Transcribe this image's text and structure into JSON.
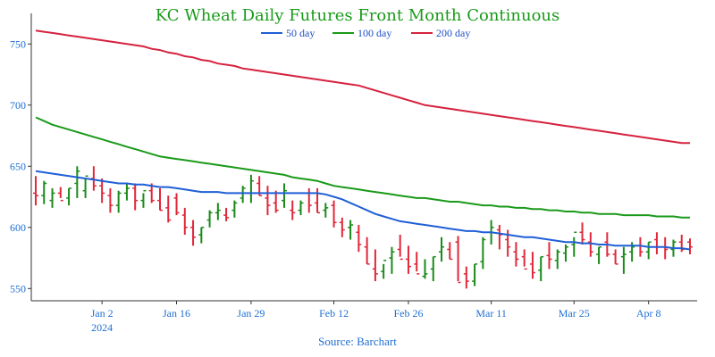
{
  "chart_data": {
    "type": "line",
    "title": "KC Wheat Daily Futures Front Month Continuous",
    "source": "Source: Barchart",
    "legend_position": "top",
    "grid": false,
    "ylim": [
      540,
      775
    ],
    "yticks": [
      550,
      600,
      650,
      700,
      750
    ],
    "x_dates": [
      "Dec 19",
      "Dec 20",
      "Dec 21",
      "Dec 22",
      "Dec 26",
      "Dec 27",
      "Dec 28",
      "Dec 29",
      "Jan 2",
      "Jan 3",
      "Jan 4",
      "Jan 5",
      "Jan 8",
      "Jan 9",
      "Jan 10",
      "Jan 11",
      "Jan 12",
      "Jan 16",
      "Jan 17",
      "Jan 18",
      "Jan 19",
      "Jan 22",
      "Jan 23",
      "Jan 24",
      "Jan 25",
      "Jan 26",
      "Jan 29",
      "Jan 30",
      "Jan 31",
      "Feb 1",
      "Feb 2",
      "Feb 5",
      "Feb 6",
      "Feb 7",
      "Feb 8",
      "Feb 9",
      "Feb 12",
      "Feb 13",
      "Feb 14",
      "Feb 15",
      "Feb 16",
      "Feb 20",
      "Feb 21",
      "Feb 22",
      "Feb 23",
      "Feb 26",
      "Feb 27",
      "Feb 28",
      "Feb 29",
      "Mar 1",
      "Mar 4",
      "Mar 5",
      "Mar 6",
      "Mar 7",
      "Mar 8",
      "Mar 11",
      "Mar 12",
      "Mar 13",
      "Mar 14",
      "Mar 15",
      "Mar 18",
      "Mar 19",
      "Mar 20",
      "Mar 21",
      "Mar 22",
      "Mar 25",
      "Mar 26",
      "Mar 27",
      "Mar 28",
      "Apr 1",
      "Apr 2",
      "Apr 3",
      "Apr 4",
      "Apr 5",
      "Apr 8",
      "Apr 9",
      "Apr 10",
      "Apr 11",
      "Apr 12",
      "Apr 15"
    ],
    "x_ticks": [
      {
        "label": "Jan 2",
        "sublabel": "2024",
        "date": "Jan 2"
      },
      {
        "label": "Jan 16",
        "date": "Jan 16"
      },
      {
        "label": "Jan 29",
        "date": "Jan 29"
      },
      {
        "label": "Feb 12",
        "date": "Feb 12"
      },
      {
        "label": "Feb 26",
        "date": "Feb 26"
      },
      {
        "label": "Mar 11",
        "date": "Mar 11"
      },
      {
        "label": "Mar 25",
        "date": "Mar 25"
      },
      {
        "label": "Apr 8",
        "date": "Apr 8"
      }
    ],
    "ohlc": {
      "name": "KC Wheat",
      "up_color": "#1a8a1a",
      "down_color": "#e0283a",
      "open": [
        628,
        626,
        622,
        628,
        624,
        636,
        630,
        640,
        634,
        626,
        618,
        628,
        632,
        622,
        630,
        622,
        616,
        624,
        610,
        600,
        594,
        606,
        612,
        610,
        614,
        624,
        628,
        636,
        624,
        620,
        622,
        614,
        614,
        628,
        620,
        614,
        618,
        604,
        600,
        596,
        584,
        566,
        564,
        575,
        582,
        574,
        570,
        560,
        566,
        580,
        582,
        588,
        562,
        556,
        572,
        596,
        598,
        590,
        580,
        576,
        570,
        565,
        577,
        573,
        579,
        586,
        596,
        588,
        578,
        588,
        578,
        576,
        580,
        585,
        580,
        590,
        584,
        582,
        588,
        588
      ],
      "high": [
        642,
        638,
        632,
        633,
        632,
        650,
        640,
        650,
        640,
        632,
        630,
        636,
        636,
        628,
        636,
        632,
        626,
        628,
        616,
        606,
        600,
        614,
        620,
        616,
        622,
        634,
        643,
        642,
        634,
        630,
        636,
        622,
        622,
        632,
        632,
        620,
        622,
        608,
        606,
        602,
        592,
        582,
        570,
        584,
        594,
        585,
        580,
        574,
        576,
        592,
        588,
        593,
        568,
        570,
        592,
        606,
        602,
        598,
        588,
        582,
        580,
        576,
        588,
        582,
        586,
        592,
        604,
        596,
        584,
        596,
        582,
        584,
        588,
        592,
        588,
        596,
        592,
        590,
        594,
        591
      ],
      "low": [
        618,
        619,
        616,
        624,
        618,
        624,
        624,
        630,
        620,
        612,
        612,
        622,
        614,
        616,
        620,
        614,
        604,
        610,
        594,
        585,
        587,
        600,
        606,
        605,
        608,
        620,
        620,
        626,
        610,
        612,
        616,
        606,
        610,
        612,
        612,
        608,
        600,
        592,
        590,
        580,
        570,
        556,
        558,
        562,
        576,
        562,
        564,
        558,
        556,
        572,
        574,
        556,
        550,
        552,
        566,
        586,
        582,
        576,
        568,
        568,
        558,
        556,
        566,
        566,
        572,
        576,
        586,
        576,
        570,
        576,
        570,
        562,
        572,
        576,
        574,
        578,
        574,
        576,
        580,
        578
      ],
      "close": [
        626,
        636,
        628,
        622,
        632,
        646,
        642,
        634,
        628,
        618,
        628,
        632,
        622,
        630,
        622,
        614,
        606,
        612,
        600,
        592,
        600,
        612,
        614,
        608,
        620,
        632,
        638,
        626,
        618,
        614,
        630,
        612,
        620,
        618,
        612,
        616,
        604,
        598,
        602,
        586,
        570,
        562,
        573,
        580,
        574,
        568,
        562,
        562,
        576,
        584,
        574,
        555,
        556,
        570,
        590,
        600,
        594,
        584,
        574,
        566,
        563,
        576,
        574,
        580,
        584,
        596,
        590,
        580,
        584,
        578,
        570,
        578,
        584,
        580,
        588,
        584,
        582,
        588,
        582,
        584
      ]
    },
    "series": [
      {
        "name": "50 day",
        "color": "#1f5fd6",
        "values": [
          646,
          645,
          644,
          643,
          642,
          641,
          640,
          639,
          638,
          637,
          636,
          636,
          635,
          635,
          634,
          633,
          633,
          632,
          631,
          630,
          629,
          629,
          629,
          628,
          628,
          628,
          628,
          628,
          628,
          628,
          628,
          628,
          628,
          628,
          628,
          627,
          625,
          623,
          620,
          617,
          614,
          611,
          609,
          607,
          605,
          604,
          603,
          602,
          601,
          600,
          599,
          598,
          597,
          597,
          596,
          596,
          595,
          594,
          593,
          592,
          592,
          591,
          590,
          589,
          588,
          588,
          587,
          587,
          586,
          586,
          585,
          585,
          585,
          585,
          584,
          584,
          584,
          583,
          583,
          582
        ]
      },
      {
        "name": "100 day",
        "color": "#1a9a1a",
        "values": [
          690,
          687,
          684,
          682,
          680,
          678,
          676,
          674,
          672,
          670,
          668,
          666,
          664,
          662,
          660,
          658,
          657,
          656,
          655,
          654,
          653,
          652,
          651,
          650,
          649,
          648,
          647,
          646,
          645,
          644,
          643,
          641,
          640,
          639,
          638,
          636,
          634,
          633,
          632,
          631,
          630,
          629,
          628,
          627,
          626,
          625,
          624,
          624,
          623,
          622,
          621,
          621,
          620,
          619,
          618,
          618,
          617,
          617,
          616,
          616,
          615,
          615,
          614,
          614,
          613,
          613,
          612,
          612,
          611,
          611,
          611,
          610,
          610,
          610,
          610,
          609,
          609,
          609,
          608,
          608
        ]
      },
      {
        "name": "200 day",
        "color": "#d6223f",
        "values": [
          761,
          760,
          759,
          758,
          757,
          756,
          755,
          754,
          753,
          752,
          751,
          750,
          749,
          748,
          746,
          745,
          743,
          742,
          740,
          739,
          737,
          736,
          734,
          733,
          732,
          730,
          729,
          728,
          727,
          726,
          725,
          724,
          723,
          722,
          721,
          720,
          719,
          718,
          717,
          716,
          714,
          712,
          710,
          708,
          706,
          704,
          702,
          700,
          699,
          698,
          697,
          696,
          695,
          694,
          693,
          692,
          691,
          690,
          689,
          688,
          687,
          686,
          685,
          684,
          683,
          682,
          681,
          680,
          679,
          678,
          677,
          676,
          675,
          674,
          673,
          672,
          671,
          670,
          669,
          669
        ]
      }
    ]
  }
}
